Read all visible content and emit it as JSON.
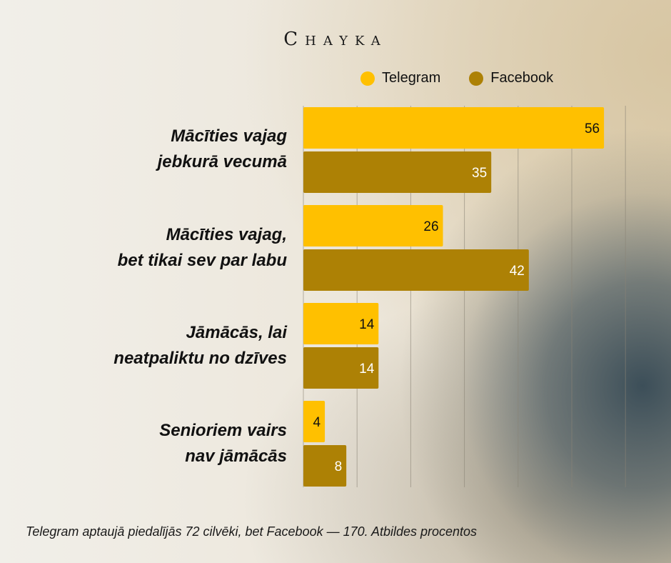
{
  "brand": "Chayka",
  "chart_data": {
    "type": "bar",
    "orientation": "horizontal",
    "categories": [
      "Mācīties vajag jebkurā vecumā",
      "Mācīties vajag, bet tikai sev par labu",
      "Jāmācās, lai neatpaliktu no dzīves",
      "Senioriem vairs nav jāmācās"
    ],
    "category_lines": [
      [
        "Mācīties vajag",
        "jebkurā vecumā"
      ],
      [
        "Mācīties vajag,",
        "bet tikai sev par labu"
      ],
      [
        "Jāmācās, lai",
        "neatpaliktu no dzīves"
      ],
      [
        "Senioriem vairs",
        "nav jāmācās"
      ]
    ],
    "series": [
      {
        "name": "Telegram",
        "values": [
          56,
          26,
          14,
          4
        ],
        "color": "#FFC000"
      },
      {
        "name": "Facebook",
        "values": [
          35,
          42,
          14,
          8
        ],
        "color": "#AD8105"
      }
    ],
    "xlim": [
      0,
      60
    ],
    "grid": true,
    "legend": "top"
  },
  "colors": {
    "telegram": "#FFC000",
    "facebook": "#AD8105",
    "telegram_value_text": "#111111",
    "facebook_value_text": "#ffffff",
    "grid": "#8a8477"
  },
  "footnote": "Telegram aptaujā piedalījās 72 cilvēki, bet Facebook — 170. Atbildes procentos"
}
